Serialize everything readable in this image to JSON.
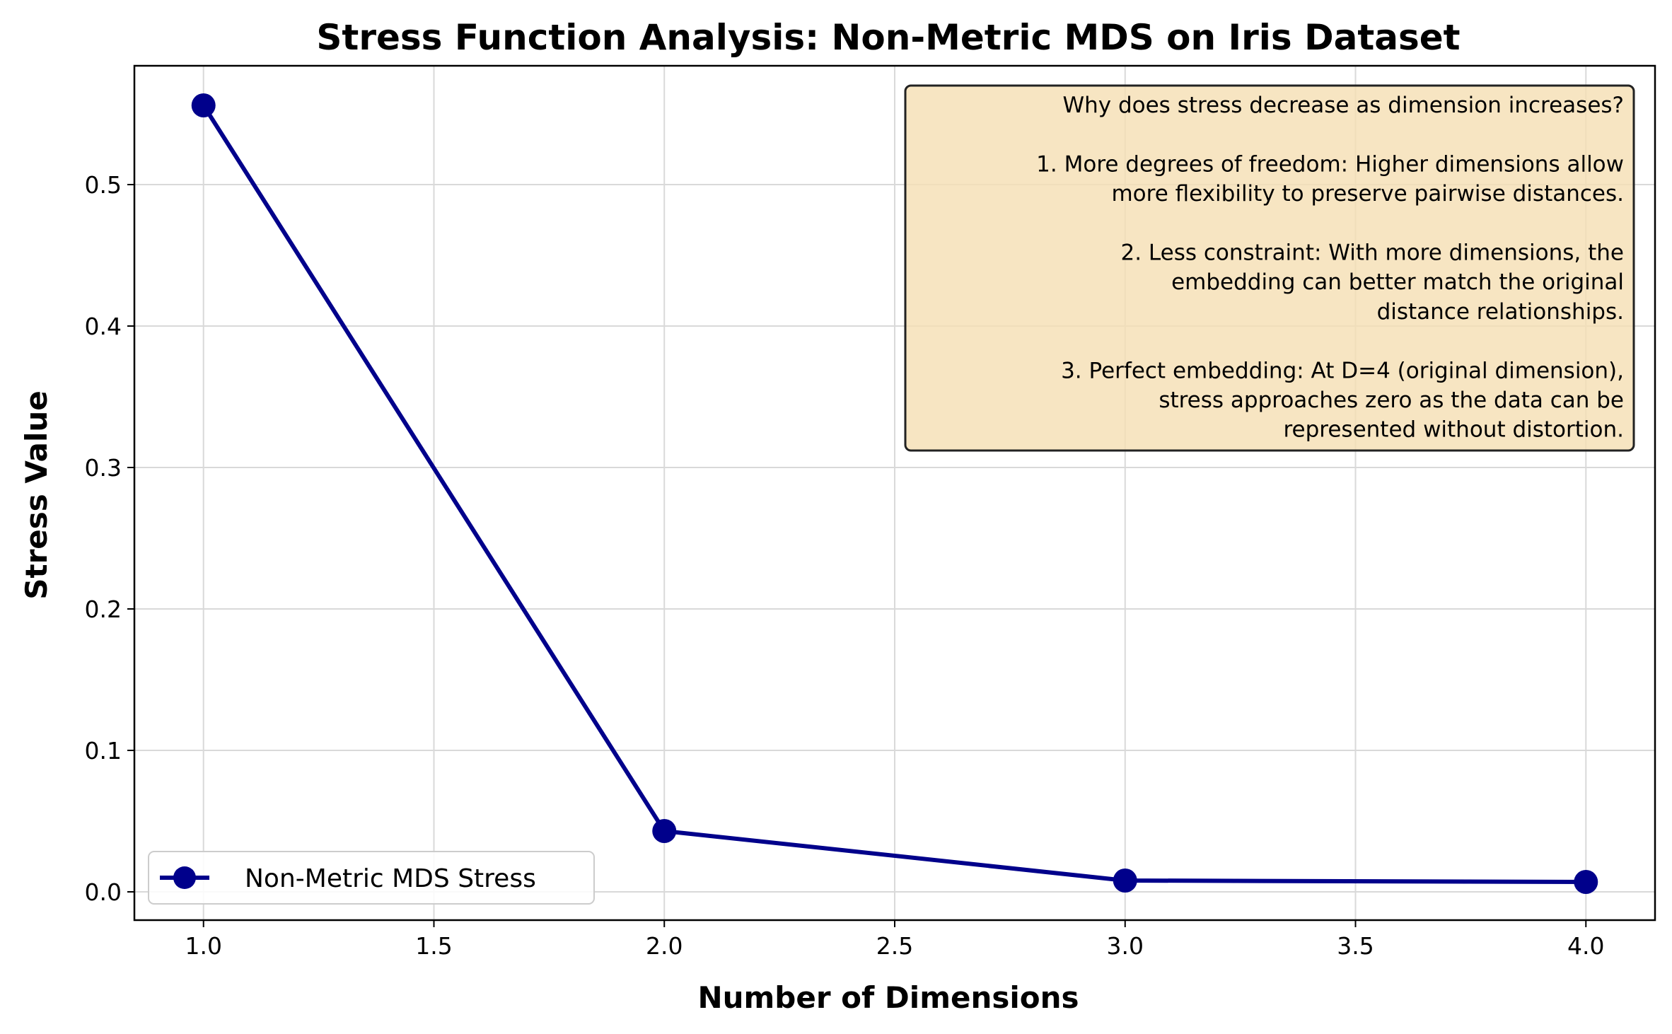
{
  "chart_data": {
    "type": "line",
    "title": "Stress Function Analysis: Non-Metric MDS on Iris Dataset",
    "xlabel": "Number of Dimensions",
    "ylabel": "Stress Value",
    "x": [
      1,
      2,
      3,
      4
    ],
    "series": [
      {
        "name": "Non-Metric MDS Stress",
        "values": [
          0.556,
          0.043,
          0.008,
          0.007
        ],
        "color": "#00008b",
        "marker": "circle"
      }
    ],
    "xlim": [
      0.85,
      4.15
    ],
    "ylim": [
      -0.02,
      0.584
    ],
    "xticks": [
      "1.0",
      "1.5",
      "2.0",
      "2.5",
      "3.0",
      "3.5",
      "4.0"
    ],
    "yticks": [
      "0.0",
      "0.1",
      "0.2",
      "0.3",
      "0.4",
      "0.5"
    ],
    "grid": true,
    "legend": {
      "placement": "lower-left",
      "entries": [
        "Non-Metric MDS Stress"
      ]
    },
    "annotation": {
      "placement": "upper-right",
      "background": "#f5deb3",
      "lines": [
        "Why does stress decrease as dimension increases?",
        "",
        "1. More degrees of freedom: Higher dimensions allow",
        "more flexibility to preserve pairwise distances.",
        "",
        "2. Less constraint: With more dimensions, the",
        "embedding can better match the original",
        "distance relationships.",
        "",
        "3. Perfect embedding: At D=4 (original dimension),",
        "stress approaches zero as the data can be",
        "represented without distortion."
      ]
    }
  }
}
